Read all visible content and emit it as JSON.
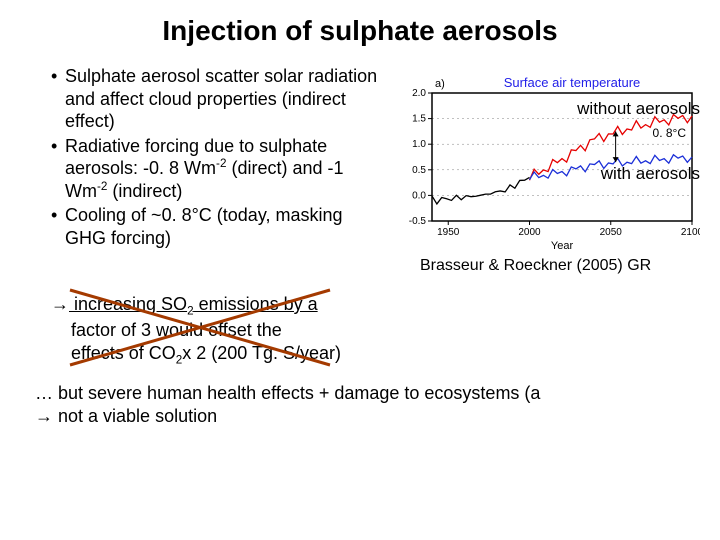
{
  "title": "Injection of sulphate aerosols",
  "bullets": {
    "b1_pre": "Sulphate aerosol scatter solar radiation and affect cloud properties (indirect effect)",
    "b2_pre": "Radiative forcing due to sulphate aerosols: -0. 8 Wm",
    "b2_mid": " (direct) and -1 Wm",
    "b2_post": " (indirect)",
    "b3": "Cooling of ~0. 8°C (today, masking GHG forcing)",
    "sup_minus2": "-2"
  },
  "crossed": {
    "line1a": " increasing SO",
    "sub2": "2",
    "line1b": " emissions by a",
    "line2": "factor of 3 would offset the",
    "line3a": "effects of CO",
    "line3b": "x 2 (200 Tg. S/year)"
  },
  "chart": {
    "plot_title": "Surface air temperature",
    "plot_title_color": "#2220e8",
    "panel_label": "a)",
    "xlabel": "Year",
    "x_ticks": [
      "1950",
      "2000",
      "2050",
      "2100"
    ],
    "y_ticks": [
      "-0.5",
      "0.0",
      "0.5",
      "1.0",
      "1.5",
      "2.0"
    ],
    "annot_without": "without aerosols",
    "annot_with": "with aerosols",
    "annot_delta": "0. 8°C",
    "citation": "Brasseur & Roeckner  (2005) GR",
    "colors": {
      "axis": "#000000",
      "black_series": "#000000",
      "red_series": "#e60000",
      "blue_series": "#1b2fd8",
      "bg": "#ffffff"
    },
    "axis_font_size": 10,
    "title_font_size": 13
  },
  "cross_color": "#a43a00",
  "footer": {
    "line1": "… but severe human health effects + damage to ecosystems (a",
    "line2": " not a viable solution"
  }
}
